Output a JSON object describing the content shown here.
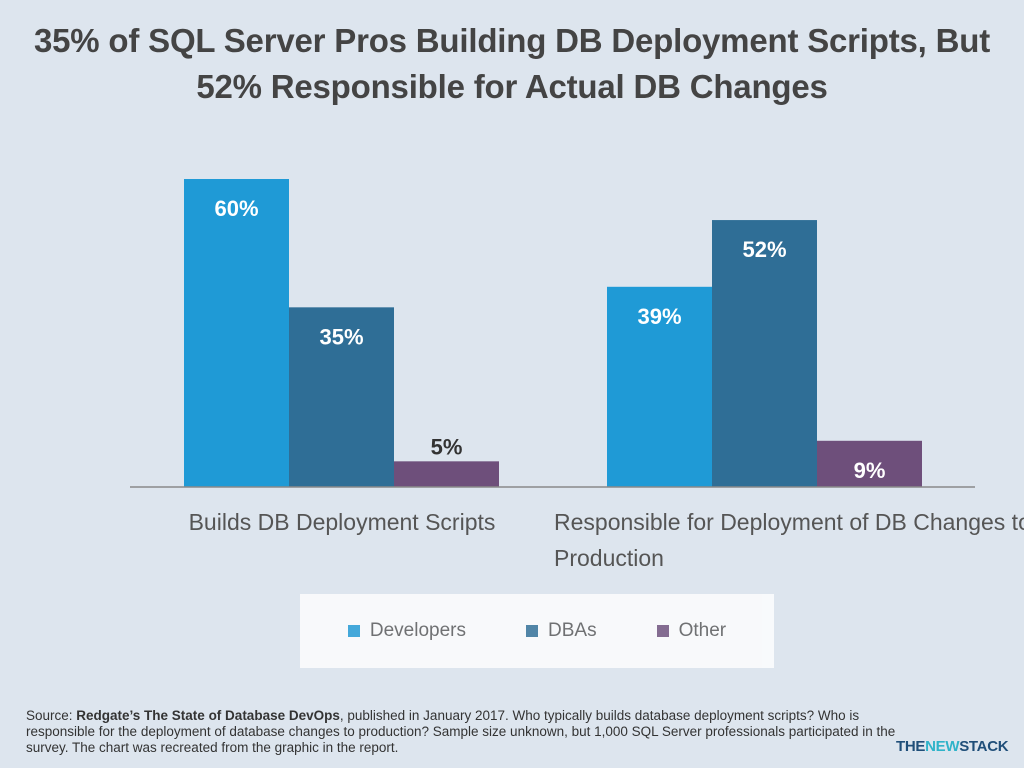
{
  "title": "35% of SQL Server Pros Building DB Deployment Scripts, But 52% Responsible for Actual DB Changes",
  "chart_data": {
    "type": "bar",
    "categories": [
      "Builds DB Deployment Scripts",
      "Responsible for Deployment of DB Changes to Production"
    ],
    "series": [
      {
        "name": "Developers",
        "values": [
          60,
          39
        ],
        "color": "#1f9ad6"
      },
      {
        "name": "DBAs",
        "values": [
          35,
          52
        ],
        "color": "#2f6e96"
      },
      {
        "name": "Other",
        "values": [
          5,
          9
        ],
        "color": "#6e4f7b"
      }
    ],
    "data_labels": [
      [
        "60%",
        "39%"
      ],
      [
        "35%",
        "52%"
      ],
      [
        "5%",
        "9%"
      ]
    ],
    "unit": "%",
    "ylim": [
      0,
      60
    ],
    "grid": false,
    "legend_position": "bottom"
  },
  "source": {
    "prefix": "Source: ",
    "bold": "Redgate’s The State of Database DevOps",
    "rest": ", published in January 2017. Who typically builds database deployment scripts? Who is responsible for the deployment of database changes to production? Sample size unknown, but 1,000 SQL Server professionals participated in the survey. The chart was recreated from the graphic in the report."
  },
  "brand": {
    "the": "THE",
    "new": "NEW",
    "stack": "STACK"
  }
}
